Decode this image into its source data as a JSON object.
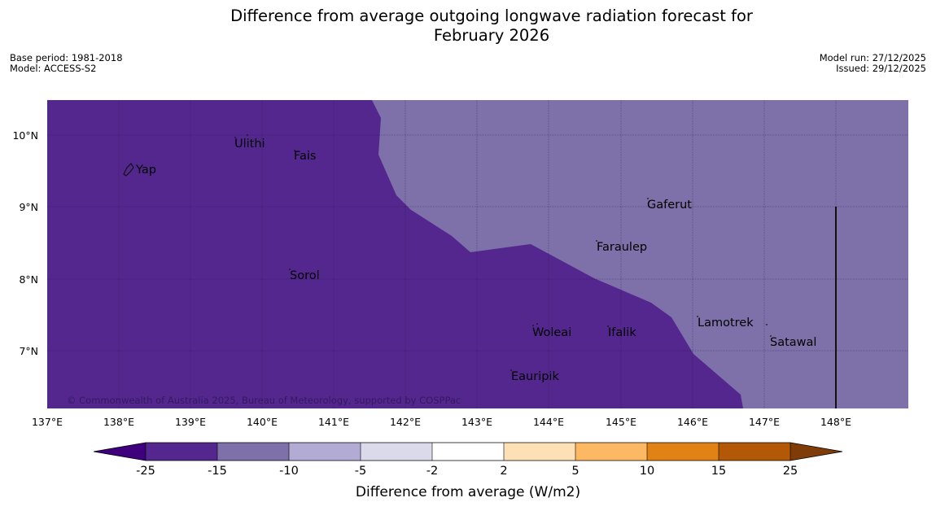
{
  "title_line1": "Difference from average outgoing longwave radiation forecast for",
  "title_line2": "February 2026",
  "meta": {
    "base_period": "Base period: 1981-2018",
    "model": "Model: ACCESS-S2",
    "model_run": "Model run: 27/12/2025",
    "issued": "Issued: 29/12/2025"
  },
  "map": {
    "lon_labels": [
      "137°E",
      "138°E",
      "139°E",
      "140°E",
      "141°E",
      "142°E",
      "143°E",
      "144°E",
      "145°E",
      "146°E",
      "147°E",
      "148°E"
    ],
    "lat_labels": [
      "10°N",
      "9°N",
      "8°N",
      "7°N"
    ],
    "places": [
      "Yap",
      "Ulithi",
      "Fais",
      "Gaferut",
      "Faraulep",
      "Sorol",
      "Woleai",
      "Ifalik",
      "Lamotrek",
      "Satawal",
      "Eauripik"
    ],
    "copyright": "© Commonwealth of Australia 2025, Bureau of Meteorology, supported by COSPPac",
    "region_colors": {
      "below_minus_15": "#54278f",
      "minus_15_to_minus_10": "#7e71aa"
    }
  },
  "colorbar": {
    "label": "Difference from average (W/m2)",
    "ticks": [
      "-25",
      "-15",
      "-10",
      "-5",
      "-2",
      "2",
      "5",
      "10",
      "15",
      "25"
    ],
    "colors": [
      "#3f007d",
      "#54278f",
      "#7e71aa",
      "#b2abd3",
      "#dadaeb",
      "#ffffff",
      "#fee0b6",
      "#fdb863",
      "#e08214",
      "#b35806",
      "#7f3b08"
    ]
  }
}
